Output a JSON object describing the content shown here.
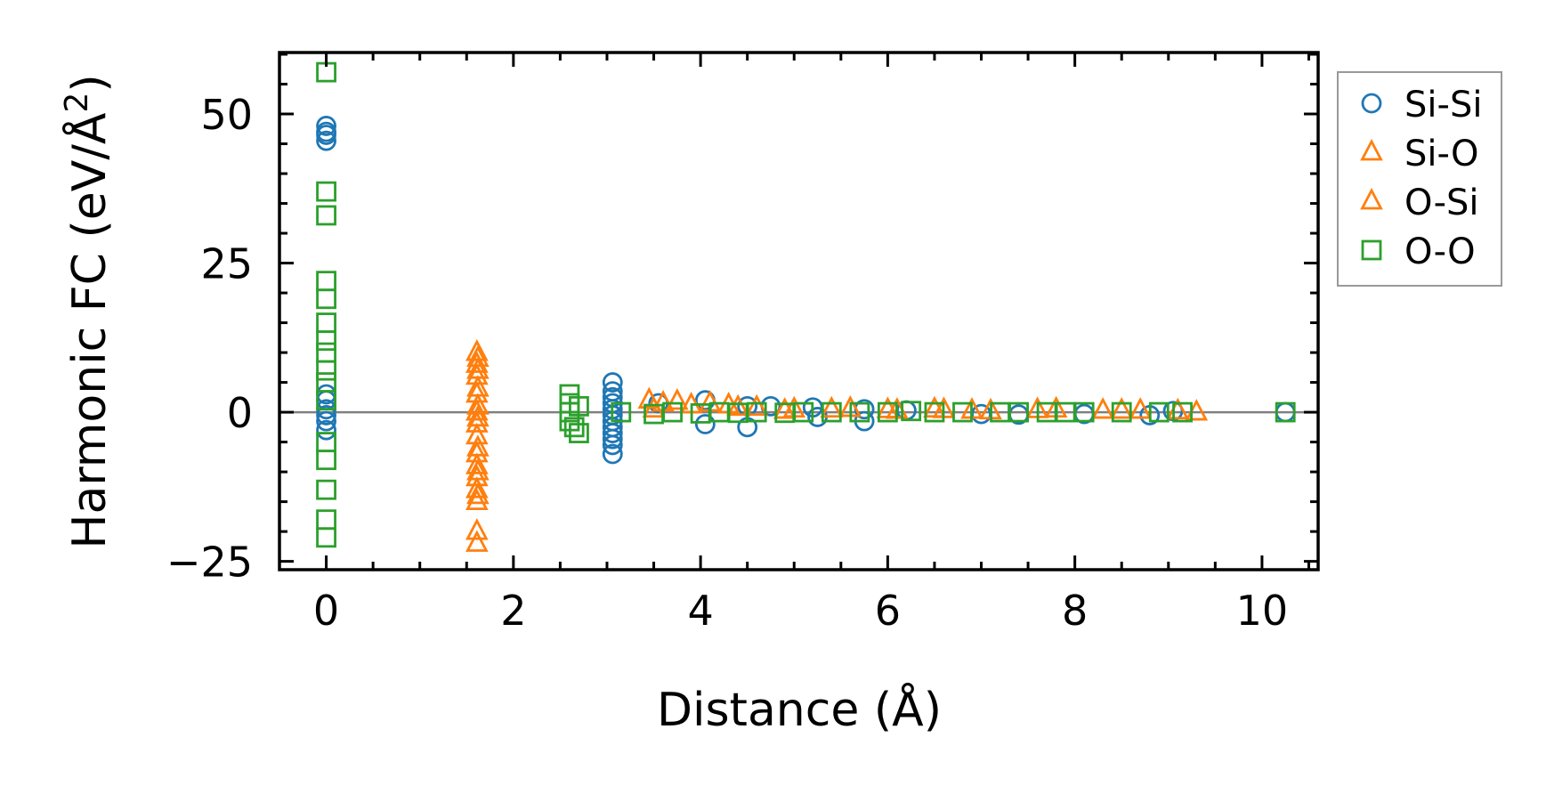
{
  "chart_data": {
    "type": "scatter",
    "title": "",
    "xlabel": "Distance (Å)",
    "ylabel": "Harmonic FC (eV/Å²)",
    "ylabel_main": "Harmonic FC (eV/Å",
    "ylabel_sup": "2",
    "ylabel_end": ")",
    "xlim": [
      -0.5,
      10.6
    ],
    "ylim": [
      -26.4,
      60.3
    ],
    "xticks": [
      0,
      2,
      4,
      6,
      8,
      10
    ],
    "xtick_labels": [
      "0",
      "2",
      "4",
      "6",
      "8",
      "10"
    ],
    "yticks": [
      -25,
      0,
      25,
      50
    ],
    "ytick_labels": [
      "−25",
      "0",
      "25",
      "50"
    ],
    "grid": false,
    "zero_line": true,
    "legend_placement": "outside-top-right",
    "series": [
      {
        "name": "Si-Si",
        "marker": "circle",
        "color": "#1f77b4",
        "x": [
          0,
          0,
          0,
          0,
          0,
          0,
          0,
          0,
          0,
          0,
          3.06,
          3.06,
          3.06,
          3.06,
          3.06,
          3.06,
          3.06,
          3.06,
          3.06,
          3.06,
          3.06,
          3.06,
          3.55,
          4.05,
          4.05,
          4.5,
          4.5,
          4.75,
          5.2,
          5.25,
          5.75,
          5.75,
          6.2,
          7.0,
          7.4,
          8.1,
          8.8,
          9.05,
          10.25
        ],
        "y": [
          48,
          47,
          46.5,
          45.5,
          3,
          2,
          0.5,
          -0.5,
          -1.5,
          -3,
          5,
          3.5,
          2.5,
          1.5,
          0.5,
          -0.5,
          -1.5,
          -2.5,
          -3.5,
          -4.5,
          -5.5,
          -7,
          1.5,
          2,
          -2,
          1,
          -2.5,
          1,
          0.8,
          -0.8,
          0.5,
          -1.5,
          0.3,
          -0.3,
          -0.4,
          -0.3,
          -0.5,
          0.2,
          0
        ]
      },
      {
        "name": "Si-O",
        "marker": "triangle",
        "color": "#ff7f0e",
        "x": [
          1.61,
          1.61,
          1.61,
          1.61,
          1.61,
          1.61,
          1.61,
          1.61,
          1.61,
          1.61,
          1.61,
          1.61,
          1.61,
          1.61,
          3.45,
          3.6,
          3.75,
          4.1,
          4.3,
          4.6,
          5.0,
          5.6,
          6.0,
          6.5,
          6.9,
          7.6,
          8.3,
          8.7,
          9.3
        ],
        "y": [
          10,
          8,
          6,
          3,
          0,
          -2,
          -4,
          -7,
          -9,
          -11,
          -13,
          -15,
          -20,
          -22,
          2,
          1.5,
          1.8,
          1.5,
          1.2,
          0.8,
          0.5,
          0.6,
          0.4,
          0.5,
          0.3,
          0.4,
          0.3,
          0.3,
          0
        ]
      },
      {
        "name": "O-Si",
        "marker": "triangle",
        "color": "#ff7f0e",
        "x": [
          1.62,
          1.62,
          1.62,
          1.62,
          1.62,
          1.62,
          1.62,
          1.62,
          3.5,
          3.9,
          4.4,
          4.9,
          5.4,
          6.1,
          6.6,
          7.1,
          7.8,
          8.5,
          9.1
        ],
        "y": [
          9,
          7,
          4,
          1,
          -1,
          -6,
          -10,
          -14,
          0.5,
          1.2,
          0.8,
          0.3,
          0.5,
          0.3,
          0.4,
          0.2,
          0.5,
          0.3,
          0.2
        ]
      },
      {
        "name": "O-O",
        "marker": "square",
        "color": "#2ca02c",
        "x": [
          0,
          0,
          0,
          0,
          0,
          0,
          0,
          0,
          0,
          0,
          0,
          0,
          0,
          0,
          0,
          0,
          2.6,
          2.6,
          2.6,
          2.6,
          2.65,
          2.7,
          2.7,
          3.15,
          3.5,
          3.7,
          4.0,
          4.2,
          4.4,
          4.6,
          4.9,
          5.1,
          5.4,
          5.7,
          6.0,
          6.25,
          6.5,
          6.8,
          7.2,
          7.4,
          7.7,
          7.9,
          8.1,
          8.5,
          8.9,
          9.15,
          10.25
        ],
        "y": [
          57,
          37,
          33,
          22,
          19,
          15,
          12,
          10,
          7,
          5,
          2,
          -5,
          -8,
          -13,
          -18,
          -21,
          3,
          1.5,
          0,
          -1.5,
          -2.5,
          -3.5,
          1,
          0,
          -0.3,
          0,
          -0.2,
          0,
          -0.1,
          0,
          -0.1,
          0,
          0,
          0,
          0,
          0.2,
          0,
          0,
          0,
          0,
          0,
          0,
          0,
          0,
          0,
          0,
          0
        ]
      }
    ]
  }
}
